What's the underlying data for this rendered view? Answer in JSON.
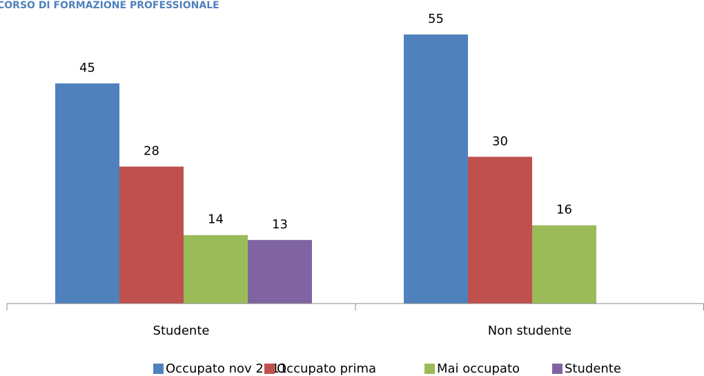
{
  "chart_data": {
    "type": "bar",
    "title": "CORSO DI FORMAZIONE PROFESSIONALE",
    "categories": [
      "Studente",
      "Non studente"
    ],
    "series": [
      {
        "name": "Occupato nov 2011",
        "color": "#4f81bd",
        "values": [
          45,
          55
        ]
      },
      {
        "name": "Occupato prima",
        "color": "#c0504d",
        "values": [
          28,
          30
        ]
      },
      {
        "name": "Mai occupato",
        "color": "#9bbb59",
        "values": [
          14,
          16
        ]
      },
      {
        "name": "Studente",
        "color": "#8064a2",
        "values": [
          13,
          null
        ]
      }
    ],
    "ylim": [
      0,
      55
    ],
    "legend": "bottom"
  }
}
